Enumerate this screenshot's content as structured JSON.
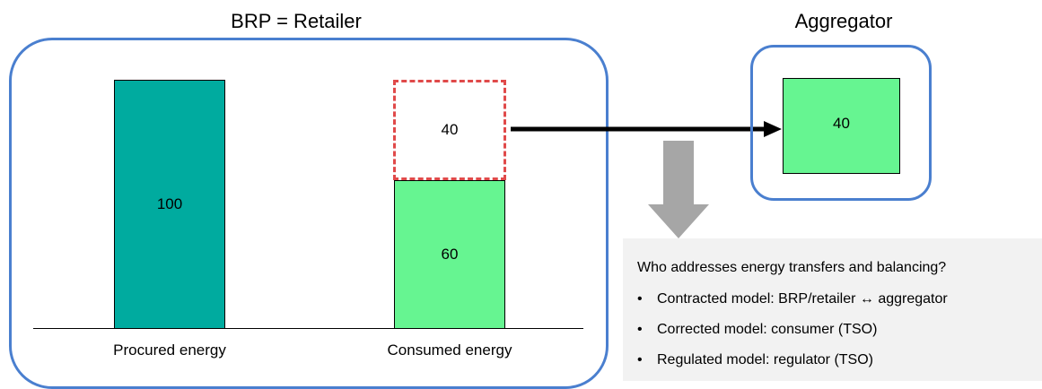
{
  "retailer": {
    "title": "BRP = Retailer",
    "bars": [
      {
        "label": "Procured energy",
        "value": "100"
      },
      {
        "label": "Consumed energy",
        "value": "60",
        "shifted_value": "40"
      }
    ]
  },
  "aggregator": {
    "title": "Aggregator",
    "value": "40"
  },
  "info": {
    "question": "Who addresses energy transfers and balancing?",
    "items": [
      "Contracted model: BRP/retailer ↔ aggregator",
      "Corrected model: consumer (TSO)",
      "Regulated model: regulator (TSO)"
    ]
  },
  "colors": {
    "frame": "#4a7fcf",
    "procured": "#00ab9f",
    "consumed": "#66f591",
    "dashed": "#e04a4a",
    "down_arrow": "#a6a6a6"
  }
}
